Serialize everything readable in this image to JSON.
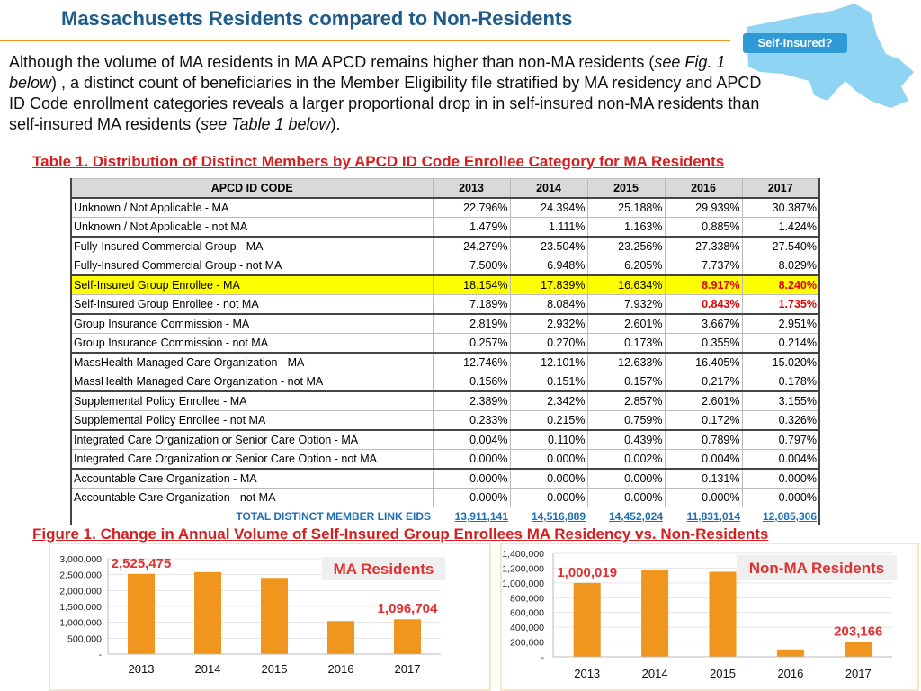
{
  "header": {
    "title": "Massachusetts Residents compared to Non-Residents",
    "badge": "Self-Insured?"
  },
  "intro": [
    "Although the volume of MA residents in MA APCD remains higher than non-MA residents (",
    "see Fig. 1 below",
    ") , a distinct count of beneficiaries in the Member Eligibility file stratified by MA residency and APCD ID Code enrollment categories reveals a larger proportional drop in in self-insured non-MA residents than self-insured MA residents  (",
    "see Table 1 below",
    ")."
  ],
  "table": {
    "title": "Table 1. Distribution of Distinct Members by APCD ID Code Enrollee Category  for MA Residents",
    "columns": [
      "APCD ID CODE",
      "2013",
      "2014",
      "2015",
      "2016",
      "2017"
    ],
    "rows": [
      [
        "Unknown / Not Applicable - MA",
        "22.796%",
        "24.394%",
        "25.188%",
        "29.939%",
        "30.387%"
      ],
      [
        "Unknown / Not Applicable - not MA",
        "1.479%",
        "1.111%",
        "1.163%",
        "0.885%",
        "1.424%"
      ],
      [
        "Fully-Insured Commercial Group - MA",
        "24.279%",
        "23.504%",
        "23.256%",
        "27.338%",
        "27.540%"
      ],
      [
        "Fully-Insured Commercial Group - not MA",
        "7.500%",
        "6.948%",
        "6.205%",
        "7.737%",
        "8.029%"
      ],
      [
        "Self-Insured Group Enrollee - MA",
        "18.154%",
        "17.839%",
        "16.634%",
        "8.917%",
        "8.240%"
      ],
      [
        "Self-Insured Group Enrollee - not MA",
        "7.189%",
        "8.084%",
        "7.932%",
        "0.843%",
        "1.735%"
      ],
      [
        "Group Insurance Commission - MA",
        "2.819%",
        "2.932%",
        "2.601%",
        "3.667%",
        "2.951%"
      ],
      [
        "Group Insurance Commission - not MA",
        "0.257%",
        "0.270%",
        "0.173%",
        "0.355%",
        "0.214%"
      ],
      [
        "MassHealth Managed Care Organization - MA",
        "12.746%",
        "12.101%",
        "12.633%",
        "16.405%",
        "15.020%"
      ],
      [
        "MassHealth Managed Care Organization - not MA",
        "0.156%",
        "0.151%",
        "0.157%",
        "0.217%",
        "0.178%"
      ],
      [
        "Supplemental Policy Enrollee - MA",
        "2.389%",
        "2.342%",
        "2.857%",
        "2.601%",
        "3.155%"
      ],
      [
        "Supplemental Policy Enrollee - not MA",
        "0.233%",
        "0.215%",
        "0.759%",
        "0.172%",
        "0.326%"
      ],
      [
        "Integrated Care Organization or Senior Care Option - MA",
        "0.004%",
        "0.110%",
        "0.439%",
        "0.789%",
        "0.797%"
      ],
      [
        "Integrated Care Organization or Senior Care Option - not MA",
        "0.000%",
        "0.000%",
        "0.002%",
        "0.004%",
        "0.004%"
      ],
      [
        "Accountable Care Organization - MA",
        "0.000%",
        "0.000%",
        "0.000%",
        "0.131%",
        "0.000%"
      ],
      [
        "Accountable Care Organization - not MA",
        "0.000%",
        "0.000%",
        "0.000%",
        "0.000%",
        "0.000%"
      ]
    ],
    "total": [
      "TOTAL DISTINCT MEMBER LINK EIDS",
      "13,911,141",
      "14,516,889",
      "14,452,024",
      "11,831,014",
      "12,085,306"
    ]
  },
  "figure_title": "Figure 1. Change in Annual Volume of Self-Insured Group Enrollees MA Residency vs. Non-Residents",
  "chart_data": [
    {
      "type": "bar",
      "title": "MA Residents",
      "categories": [
        "2013",
        "2014",
        "2015",
        "2016",
        "2017"
      ],
      "values": [
        2525475,
        2580000,
        2400000,
        1040000,
        1096704
      ],
      "value_labels": [
        "2,525,475",
        null,
        null,
        null,
        "1,096,704"
      ],
      "color": "#f0961e",
      "grid": true,
      "ylim": [
        0,
        3000000
      ],
      "yticks": [
        {
          "value": 0,
          "label": "-"
        },
        {
          "value": 500000,
          "label": "500,000"
        },
        {
          "value": 1000000,
          "label": "1,000,000"
        },
        {
          "value": 1500000,
          "label": "1,500,000"
        },
        {
          "value": 2000000,
          "label": "2,000,000"
        },
        {
          "value": 2500000,
          "label": "2,500,000"
        },
        {
          "value": 3000000,
          "label": "3,000,000"
        }
      ]
    },
    {
      "type": "bar",
      "title": "Non-MA Residents",
      "categories": [
        "2013",
        "2014",
        "2015",
        "2016",
        "2017"
      ],
      "values": [
        1000019,
        1170000,
        1150000,
        100000,
        203166
      ],
      "value_labels": [
        "1,000,019",
        null,
        null,
        null,
        "203,166"
      ],
      "color": "#f0961e",
      "grid": true,
      "ylim": [
        0,
        1400000
      ],
      "yticks": [
        {
          "value": 0,
          "label": "-"
        },
        {
          "value": 200000,
          "label": "200,000"
        },
        {
          "value": 400000,
          "label": "400,000"
        },
        {
          "value": 600000,
          "label": "600,000"
        },
        {
          "value": 800000,
          "label": "800,000"
        },
        {
          "value": 1000000,
          "label": "1,000,000"
        },
        {
          "value": 1200000,
          "label": "1,200,000"
        },
        {
          "value": 1400000,
          "label": "1,400,000"
        }
      ]
    }
  ]
}
